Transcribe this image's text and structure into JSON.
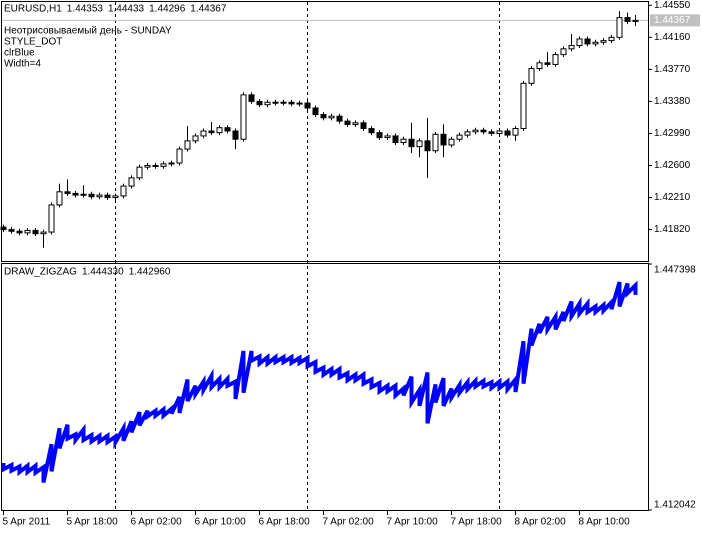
{
  "chart_data": [
    {
      "type": "candlestick",
      "title": "EURUSD,H1",
      "annotations": [
        "Неотрисовываемый день - SUNDAY",
        "STYLE_DOT",
        "clrBlue",
        "Width=4"
      ],
      "categories": [
        "5 Apr 2011",
        null,
        null,
        null,
        null,
        null,
        null,
        null,
        "5 Apr 18:00",
        null,
        null,
        null,
        null,
        null,
        null,
        null,
        "6 Apr 02:00",
        null,
        null,
        null,
        null,
        null,
        null,
        null,
        "6 Apr 10:00",
        null,
        null,
        null,
        null,
        null,
        null,
        null,
        "6 Apr 18:00",
        null,
        null,
        null,
        null,
        null,
        null,
        null,
        "7 Apr 02:00",
        null,
        null,
        null,
        null,
        null,
        null,
        null,
        "7 Apr 10:00",
        null,
        null,
        null,
        null,
        null,
        null,
        null,
        "7 Apr 18:00",
        null,
        null,
        null,
        null,
        null,
        null,
        null,
        "8 Apr 02:00",
        null,
        null,
        null,
        null,
        null,
        null,
        null,
        "8 Apr 10:00",
        null,
        null,
        null,
        null,
        null,
        null,
        null
      ],
      "open": [
        1.4185,
        1.4182,
        1.418,
        1.4178,
        1.4181,
        1.4177,
        1.4179,
        1.4212,
        1.4228,
        1.4226,
        1.4224,
        1.4225,
        1.4222,
        1.4224,
        1.4221,
        1.4223,
        1.4235,
        1.4245,
        1.4258,
        1.426,
        1.4259,
        1.4262,
        1.4263,
        1.428,
        1.429,
        1.4296,
        1.4302,
        1.43,
        1.4306,
        1.4302,
        1.4292,
        1.4346,
        1.4338,
        1.4334,
        1.4337,
        1.4336,
        1.4337,
        1.4335,
        1.4336,
        1.433,
        1.4322,
        1.4318,
        1.432,
        1.4314,
        1.431,
        1.4312,
        1.4305,
        1.43,
        1.4294,
        1.4296,
        1.4288,
        1.4292,
        1.4283,
        1.429,
        1.4278,
        1.4298,
        1.4285,
        1.4292,
        1.4297,
        1.4301,
        1.4303,
        1.4301,
        1.4299,
        1.4302,
        1.4297,
        1.4305,
        1.436,
        1.4378,
        1.4385,
        1.4383,
        1.4395,
        1.4402,
        1.4406,
        1.4414,
        1.4408,
        1.441,
        1.4412,
        1.4416,
        1.444,
        1.44353
      ],
      "high": [
        1.4188,
        1.4185,
        1.4183,
        1.4184,
        1.4184,
        1.4182,
        1.4215,
        1.4238,
        1.4243,
        1.4229,
        1.4236,
        1.4228,
        1.4227,
        1.4227,
        1.4226,
        1.4238,
        1.4248,
        1.4261,
        1.4263,
        1.4263,
        1.4265,
        1.4266,
        1.4283,
        1.4308,
        1.4299,
        1.4305,
        1.4313,
        1.4309,
        1.4309,
        1.4305,
        1.4349,
        1.4349,
        1.4341,
        1.434,
        1.434,
        1.434,
        1.434,
        1.4339,
        1.4339,
        1.4333,
        1.4325,
        1.4323,
        1.4323,
        1.4317,
        1.4315,
        1.4315,
        1.4308,
        1.4303,
        1.4299,
        1.4299,
        1.4295,
        1.4312,
        1.4293,
        1.4318,
        1.4301,
        1.431,
        1.4295,
        1.43,
        1.4304,
        1.4306,
        1.4306,
        1.4304,
        1.4305,
        1.4305,
        1.4308,
        1.4363,
        1.4381,
        1.4388,
        1.4398,
        1.4398,
        1.4405,
        1.442,
        1.4417,
        1.4417,
        1.4413,
        1.4415,
        1.4419,
        1.4448,
        1.4446,
        1.44433
      ],
      "low": [
        1.4179,
        1.4177,
        1.4175,
        1.4175,
        1.4174,
        1.416,
        1.4176,
        1.4209,
        1.4223,
        1.4221,
        1.4221,
        1.4219,
        1.4219,
        1.4218,
        1.4218,
        1.422,
        1.4232,
        1.4242,
        1.4255,
        1.4256,
        1.4256,
        1.4259,
        1.426,
        1.4277,
        1.4287,
        1.4293,
        1.4297,
        1.4297,
        1.4299,
        1.428,
        1.4289,
        1.4335,
        1.4331,
        1.4331,
        1.4333,
        1.4333,
        1.4332,
        1.4332,
        1.4327,
        1.4319,
        1.4315,
        1.4315,
        1.4311,
        1.4307,
        1.4307,
        1.4302,
        1.4297,
        1.4291,
        1.4291,
        1.4285,
        1.4285,
        1.4275,
        1.427,
        1.4245,
        1.4275,
        1.427,
        1.4282,
        1.4289,
        1.4294,
        1.4298,
        1.4298,
        1.4296,
        1.4296,
        1.4294,
        1.429,
        1.4302,
        1.4357,
        1.4375,
        1.438,
        1.438,
        1.4392,
        1.4399,
        1.4403,
        1.4405,
        1.4405,
        1.4407,
        1.4409,
        1.4413,
        1.4432,
        1.44296
      ],
      "close": [
        1.4182,
        1.418,
        1.4178,
        1.4181,
        1.4177,
        1.4179,
        1.4212,
        1.4228,
        1.4226,
        1.4224,
        1.4225,
        1.4222,
        1.4224,
        1.4221,
        1.4223,
        1.4235,
        1.4245,
        1.4258,
        1.426,
        1.4259,
        1.4262,
        1.4263,
        1.428,
        1.429,
        1.4296,
        1.4302,
        1.43,
        1.4306,
        1.4302,
        1.4292,
        1.4346,
        1.4338,
        1.4334,
        1.4337,
        1.4336,
        1.4337,
        1.4335,
        1.4336,
        1.433,
        1.4322,
        1.4318,
        1.432,
        1.4314,
        1.431,
        1.4312,
        1.4305,
        1.43,
        1.4294,
        1.4296,
        1.4288,
        1.4292,
        1.4283,
        1.429,
        1.4278,
        1.4298,
        1.4285,
        1.4292,
        1.4297,
        1.4301,
        1.4303,
        1.4301,
        1.4299,
        1.4302,
        1.4297,
        1.4305,
        1.436,
        1.4378,
        1.4385,
        1.4383,
        1.4395,
        1.4402,
        1.4406,
        1.4414,
        1.4408,
        1.441,
        1.4412,
        1.4416,
        1.444,
        1.44353,
        1.44367
      ],
      "up_color": "#ffffff",
      "down_color": "#000000",
      "ylim": [
        1.4145,
        1.4459
      ],
      "yticks": [
        {
          "value": 1.4455,
          "label": "1.44550"
        },
        {
          "value": 1.4416,
          "label": "1.44160"
        },
        {
          "value": 1.4377,
          "label": "1.43770"
        },
        {
          "value": 1.4338,
          "label": "1.43380"
        },
        {
          "value": 1.4299,
          "label": "1.42990"
        },
        {
          "value": 1.426,
          "label": "1.42600"
        },
        {
          "value": 1.4221,
          "label": "1.42210"
        },
        {
          "value": 1.4182,
          "label": "1.41820"
        }
      ]
    },
    {
      "type": "zigzag",
      "title": "DRAW_ZIGZAG",
      "header_values": [
        "1.444330",
        "1.442960"
      ],
      "color": "#0000ff",
      "line_width": 4,
      "ylim": [
        1.412042,
        1.447398
      ],
      "yticks": [
        1.447398,
        1.412042
      ]
    }
  ]
}
